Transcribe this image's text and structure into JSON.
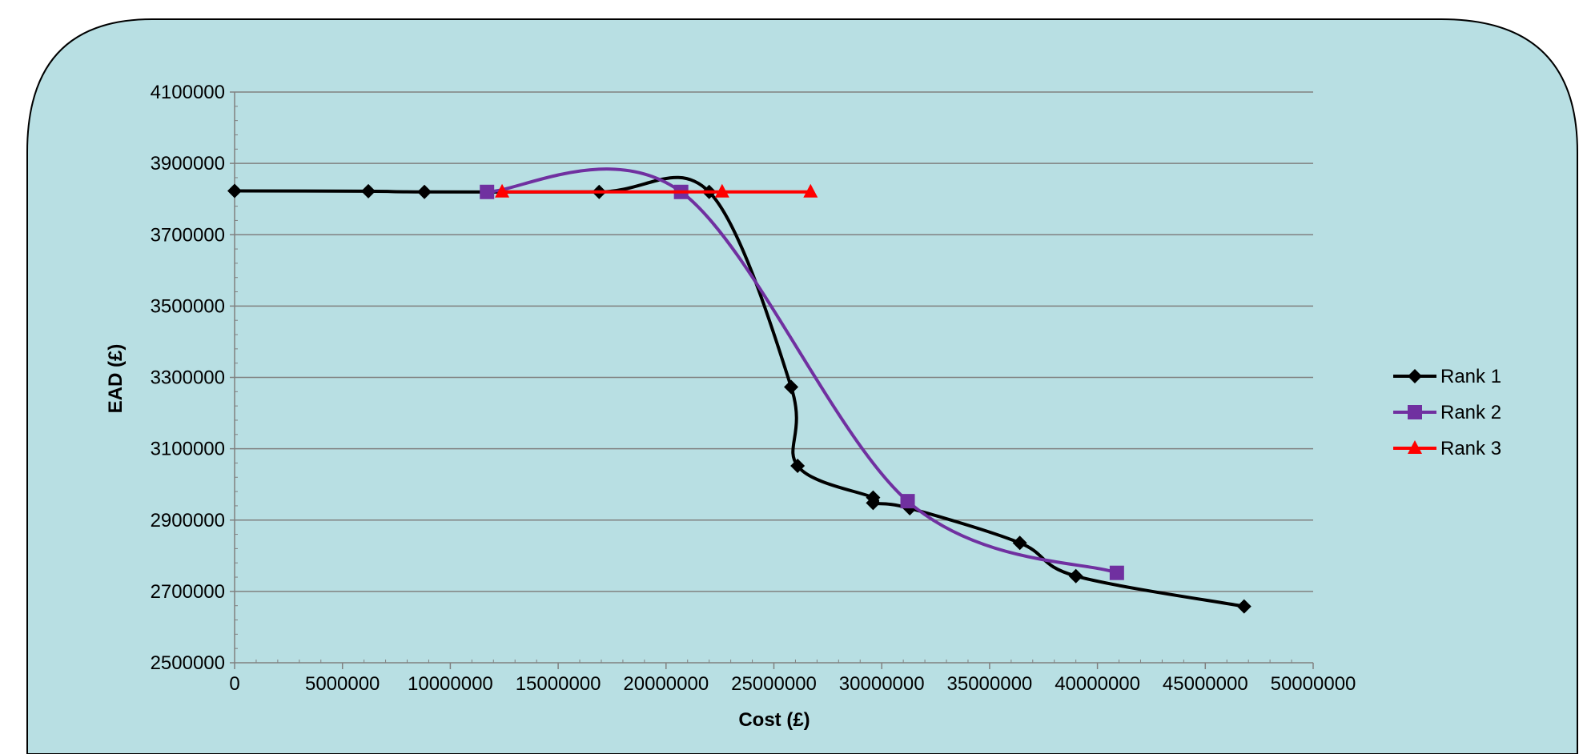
{
  "chart_data": {
    "type": "line",
    "title": "",
    "xlabel": "Cost (£)",
    "ylabel": "EAD (£)",
    "xlim": [
      0,
      50000000
    ],
    "ylim": [
      2500000,
      4100000
    ],
    "x_ticks": [
      "0",
      "5000000",
      "10000000",
      "15000000",
      "20000000",
      "25000000",
      "30000000",
      "35000000",
      "40000000",
      "45000000",
      "50000000"
    ],
    "y_ticks": [
      "2500000",
      "2700000",
      "2900000",
      "3100000",
      "3300000",
      "3500000",
      "3700000",
      "3900000",
      "4100000"
    ],
    "grid": "horizontal",
    "legend_position": "right",
    "smooth": true,
    "background_color": "#b8dfe3",
    "series": [
      {
        "name": "Rank 1",
        "color": "#000000",
        "marker": "diamond",
        "points": [
          [
            0,
            3823000
          ],
          [
            6200000,
            3822000
          ],
          [
            8800000,
            3820000
          ],
          [
            16900000,
            3820000
          ],
          [
            22000000,
            3820000
          ],
          [
            25800000,
            3273000
          ],
          [
            26100000,
            3052000
          ],
          [
            29600000,
            2963000
          ],
          [
            29600000,
            2948000
          ],
          [
            31300000,
            2933000
          ],
          [
            36400000,
            2836000
          ],
          [
            39000000,
            2743000
          ],
          [
            46800000,
            2658000
          ]
        ]
      },
      {
        "name": "Rank 2",
        "color": "#7030a0",
        "marker": "square",
        "points": [
          [
            11700000,
            3820000
          ],
          [
            20700000,
            3820000
          ],
          [
            31200000,
            2953000
          ],
          [
            40900000,
            2752000
          ]
        ]
      },
      {
        "name": "Rank 3",
        "color": "#ff0000",
        "marker": "triangle",
        "points": [
          [
            12400000,
            3820000
          ],
          [
            22600000,
            3820000
          ],
          [
            26700000,
            3820000
          ]
        ]
      }
    ]
  }
}
